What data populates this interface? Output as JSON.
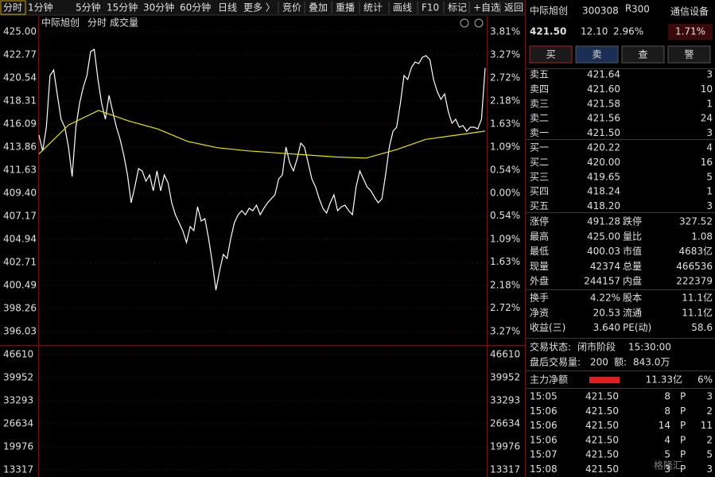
{
  "toolbar": {
    "periods": [
      "分时",
      "1分钟",
      "5分钟",
      "15分钟",
      "30分钟",
      "60分钟",
      "日线",
      "更多 〉"
    ],
    "tools": [
      "竞价",
      "叠加",
      "重播",
      "统计",
      "画线",
      "F10",
      "标记",
      "+自选",
      "返回"
    ]
  },
  "chart_header": [
    "中际旭创",
    "分时",
    "成交量"
  ],
  "chart_data": {
    "type": "line",
    "ylim": [
      396.03,
      425.0
    ],
    "yticks": [
      {
        "value": 425.0,
        "label": "425.00"
      },
      422.77,
      420.54,
      418.31,
      416.09,
      413.86,
      411.63,
      {
        "value": 409.4,
        "label": "409.40"
      },
      407.17,
      404.94,
      402.71,
      400.49,
      398.26,
      396.03
    ],
    "y2lim": [
      -3.27,
      3.81
    ],
    "y2ticks": [
      {
        "value": 3.81,
        "label": "3.81%"
      },
      {
        "value": 3.27,
        "label": "3.27%"
      },
      {
        "value": 2.72,
        "label": "2.72%"
      },
      {
        "value": 2.18,
        "label": "2.18%"
      },
      {
        "value": 1.63,
        "label": "1.63%"
      },
      {
        "value": 1.09,
        "label": "1.09%"
      },
      {
        "value": 0.54,
        "label": "0.54%"
      },
      {
        "value": 0,
        "label": "0.00%"
      },
      {
        "value": -0.54,
        "label": "0.54%"
      },
      {
        "value": -1.09,
        "label": "1.09%"
      },
      {
        "value": -1.63,
        "label": "1.63%"
      },
      {
        "value": -2.18,
        "label": "2.18%"
      },
      {
        "value": -2.72,
        "label": "2.72%"
      },
      {
        "value": -3.27,
        "label": "3.27%"
      }
    ],
    "volume_ylim": [
      13317,
      46610
    ],
    "volume_yticks": [
      46610,
      39952,
      33293,
      26634,
      19976,
      13317
    ],
    "grid": true,
    "series": [
      {
        "color": "#ffffff",
        "values": [
          415.01,
          413.47,
          415.78,
          420.77,
          421.31,
          418.85,
          416.55,
          415.78,
          413.86,
          411.01,
          415.78,
          418.08,
          419.62,
          420.77,
          423.08,
          423.31,
          420.39,
          418.08,
          416.55,
          418.85,
          417.31,
          415.78,
          414.62,
          413.09,
          411.17,
          408.48,
          410.01,
          411.78,
          411.55,
          410.55,
          411.17,
          409.63,
          411.55,
          409.63,
          411.17,
          410.4,
          408.48,
          407.32,
          406.55,
          405.78,
          404.63,
          406.17,
          405.78,
          408.09,
          406.71,
          406.94,
          405.02,
          402.71,
          400.03,
          401.94,
          403.48,
          403.09,
          405.02,
          406.55,
          407.32,
          407.71,
          407.32,
          407.94,
          407.71,
          408.24,
          407.32,
          407.94,
          408.48,
          408.86,
          409.24,
          410.78,
          411.17,
          413.86,
          412.32,
          411.55,
          412.7,
          414.24,
          413.86,
          412.32,
          410.78,
          410.01,
          408.86,
          407.94,
          407.48,
          408.48,
          409.24,
          407.71,
          408.09,
          408.24,
          407.71,
          407.32,
          410.01,
          411.55,
          410.78,
          410.01,
          409.63,
          409.01,
          408.48,
          408.86,
          411.17,
          413.86,
          415.39,
          415.78,
          418.08,
          420.77,
          420.39,
          421.54,
          422.08,
          421.93,
          422.54,
          422.69,
          422.31,
          420.39,
          419.24,
          418.47,
          419.0,
          417.31,
          416.16,
          416.55,
          415.78,
          415.93,
          415.39,
          415.78,
          415.78,
          415.62,
          416.55,
          421.5
        ]
      },
      {
        "color": "#e6e600",
        "values": [
          413.2,
          416.0,
          417.4,
          416.4,
          415.6,
          414.4,
          413.8,
          413.5,
          413.3,
          413.1,
          412.9,
          412.8,
          413.6,
          414.6,
          415.0,
          415.4
        ]
      }
    ]
  },
  "quote": {
    "name": "中际旭创",
    "code": "300308",
    "badge": "R",
    "badge_sub": "300",
    "industry": "通信设备",
    "price": "421.50",
    "change": "12.10",
    "change_pct": "2.96%",
    "extra_pct": "1.71%",
    "buttons": [
      "买",
      "卖",
      "查",
      "警"
    ],
    "asks": [
      [
        "卖五",
        "421.64",
        "3"
      ],
      [
        "卖四",
        "421.60",
        "10"
      ],
      [
        "卖三",
        "421.58",
        "1"
      ],
      [
        "卖二",
        "421.56",
        "24"
      ],
      [
        "卖一",
        "421.50",
        "3"
      ]
    ],
    "bids": [
      [
        "买一",
        "420.22",
        "4"
      ],
      [
        "买二",
        "420.00",
        "16"
      ],
      [
        "买三",
        "419.65",
        "5"
      ],
      [
        "买四",
        "418.24",
        "1"
      ],
      [
        "买五",
        "418.20",
        "3"
      ]
    ],
    "stats": [
      [
        "涨停",
        "491.28",
        "跌停",
        "327.52"
      ],
      [
        "最高",
        "425.00",
        "量比",
        "1.08"
      ],
      [
        "最低",
        "400.03",
        "市值",
        "4683亿"
      ],
      [
        "现量",
        "42374",
        "总量",
        "466536"
      ],
      [
        "外盘",
        "244157",
        "内盘",
        "222379"
      ]
    ],
    "fundamentals": [
      [
        "换手",
        "4.22%",
        "股本",
        "11.1亿"
      ],
      [
        "净资",
        "20.53",
        "流通",
        "11.1亿"
      ],
      [
        "收益(三)",
        "3.640",
        "PE(动)",
        "58.6"
      ]
    ],
    "status": [
      "交易状态:",
      "闭市阶段",
      "15:30:00"
    ],
    "after_hours": [
      "盘后交易量:",
      "200",
      "额:",
      "843.0万"
    ],
    "main_flow": [
      "主力净额",
      "11.33亿",
      "6%"
    ],
    "trades": [
      [
        "15:05",
        "421.50",
        "8",
        "P",
        "3"
      ],
      [
        "15:06",
        "421.50",
        "8",
        "P",
        "2"
      ],
      [
        "15:06",
        "421.50",
        "14",
        "P",
        "11"
      ],
      [
        "15:06",
        "421.50",
        "4",
        "P",
        "2"
      ],
      [
        "15:07",
        "421.50",
        "5",
        "P",
        "5"
      ],
      [
        "15:08",
        "421.50",
        "3",
        "P",
        "3"
      ]
    ]
  },
  "watermark": "格隆汇"
}
